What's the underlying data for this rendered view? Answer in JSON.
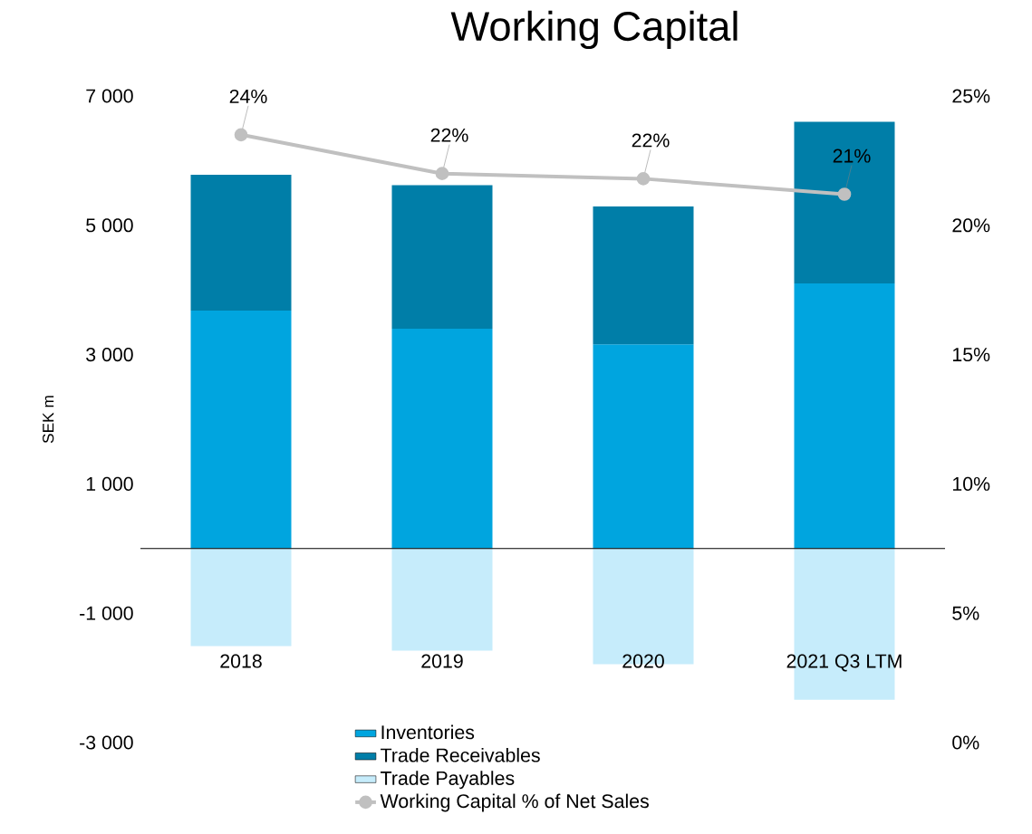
{
  "chart_data": {
    "type": "bar",
    "title": "Working Capital",
    "ylabel": "SEK m",
    "categories": [
      "2018",
      "2019",
      "2020",
      "2021 Q3 LTM"
    ],
    "stacked": true,
    "series": [
      {
        "name": "Inventories",
        "color": "#00a5df",
        "values": [
          3680,
          3400,
          3160,
          4100
        ]
      },
      {
        "name": "Trade Receivables",
        "color": "#007ea8",
        "values": [
          2100,
          2220,
          2130,
          2500
        ]
      },
      {
        "name": "Trade Payables",
        "color": "#c6ecfb",
        "values": [
          -1510,
          -1580,
          -1790,
          -2340
        ]
      },
      {
        "name": "Working Capital % of Net Sales",
        "type": "line",
        "axis": "y2",
        "color": "#c0c0c0",
        "values": [
          23.5,
          22.0,
          21.8,
          21.2
        ],
        "value_labels": [
          "24%",
          "22%",
          "22%",
          "21%"
        ]
      }
    ],
    "ylim": [
      -3000,
      7000
    ],
    "yticks": [
      {
        "value": -3000,
        "label": "-3 000"
      },
      {
        "value": -1000,
        "label": "-1 000"
      },
      {
        "value": 1000,
        "label": "1 000"
      },
      {
        "value": 3000,
        "label": "3 000"
      },
      {
        "value": 5000,
        "label": "5 000"
      },
      {
        "value": 7000,
        "label": "7 000"
      }
    ],
    "y2lim": [
      0,
      25
    ],
    "y2ticks": [
      {
        "value": 0,
        "label": "0%"
      },
      {
        "value": 5,
        "label": "5%"
      },
      {
        "value": 10,
        "label": "10%"
      },
      {
        "value": 15,
        "label": "15%"
      },
      {
        "value": 20,
        "label": "20%"
      },
      {
        "value": 25,
        "label": "25%"
      }
    ],
    "legend": "bottom",
    "marker": "circle",
    "line_style": "solid",
    "grid": false
  }
}
